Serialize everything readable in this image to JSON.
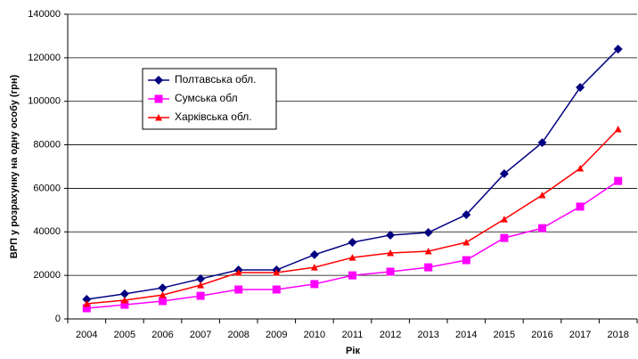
{
  "chart_data": {
    "type": "line",
    "y_label": "ВРП у розрахунку на одну особу (грн)",
    "x_label": "Рік",
    "categories": [
      "2004",
      "2005",
      "2006",
      "2007",
      "2008",
      "2009",
      "2010",
      "2011",
      "2012",
      "2013",
      "2014",
      "2015",
      "2016",
      "2017",
      "2018"
    ],
    "series": [
      {
        "name": "Полтавська обл.",
        "color": "#000080",
        "marker": "diamond",
        "values": [
          9000,
          11500,
          14300,
          18400,
          22500,
          22500,
          29500,
          35200,
          38500,
          39700,
          47900,
          66700,
          81000,
          106400,
          124000
        ]
      },
      {
        "name": "Сумська обл",
        "color": "#ff00ff",
        "marker": "square",
        "values": [
          4900,
          6500,
          8200,
          10600,
          13500,
          13500,
          16000,
          20000,
          21700,
          23700,
          27000,
          37200,
          41700,
          51600,
          63400
        ]
      },
      {
        "name": "Харківська обл.",
        "color": "#ff0000",
        "marker": "triangle",
        "values": [
          7000,
          8600,
          11000,
          15500,
          21300,
          21300,
          23700,
          28200,
          30300,
          31100,
          35200,
          45800,
          56900,
          69200,
          87200
        ]
      }
    ],
    "ylim": [
      0,
      140000
    ],
    "yticks": [
      0,
      20000,
      40000,
      60000,
      80000,
      100000,
      120000,
      140000
    ],
    "grid": true
  }
}
